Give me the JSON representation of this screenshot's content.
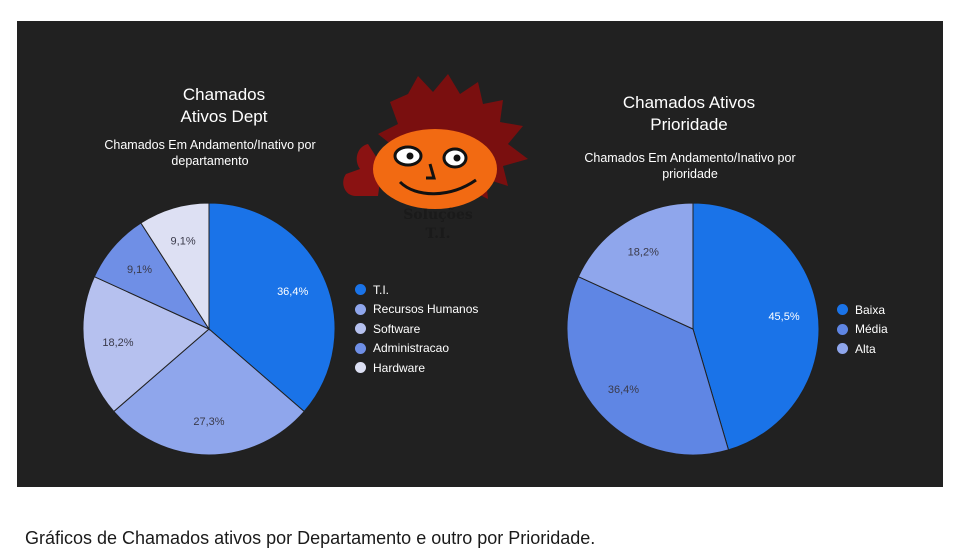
{
  "chart_data": [
    {
      "type": "pie",
      "title": "Chamados\nAtivos Dept",
      "subtitle": "Chamados Em Andamento/Inativo por\ndepartamento",
      "categories": [
        "T.I.",
        "Recursos Humanos",
        "Software",
        "Administracao",
        "Hardware"
      ],
      "values": [
        36.4,
        27.3,
        18.2,
        9.1,
        9.1
      ],
      "labels": [
        "36,4%",
        "27,3%",
        "18,2%",
        "9,1%",
        "9,1%"
      ],
      "colors": [
        "#1a73e8",
        "#8fa6ec",
        "#b6c1ef",
        "#6f8fe6",
        "#dde0f3"
      ],
      "legend_position": "right"
    },
    {
      "type": "pie",
      "title": "Chamados Ativos\nPrioridade",
      "subtitle": "Chamados Em Andamento/Inativo por\nprioridade",
      "categories": [
        "Baixa",
        "Média",
        "Alta"
      ],
      "values": [
        45.5,
        36.4,
        18.2
      ],
      "labels": [
        "45,5%",
        "36,4%",
        "18,2%"
      ],
      "colors": [
        "#1a73e8",
        "#5f86e4",
        "#8fa6ec"
      ],
      "legend_position": "right"
    }
  ],
  "logo": {
    "text_line1": "Soluções",
    "text_line2": "T.I."
  },
  "caption": "Gráficos de Chamados ativos por Departamento e outro por Prioridade.",
  "colors": {
    "panel_background": "#212121",
    "text": "#ffffff"
  }
}
